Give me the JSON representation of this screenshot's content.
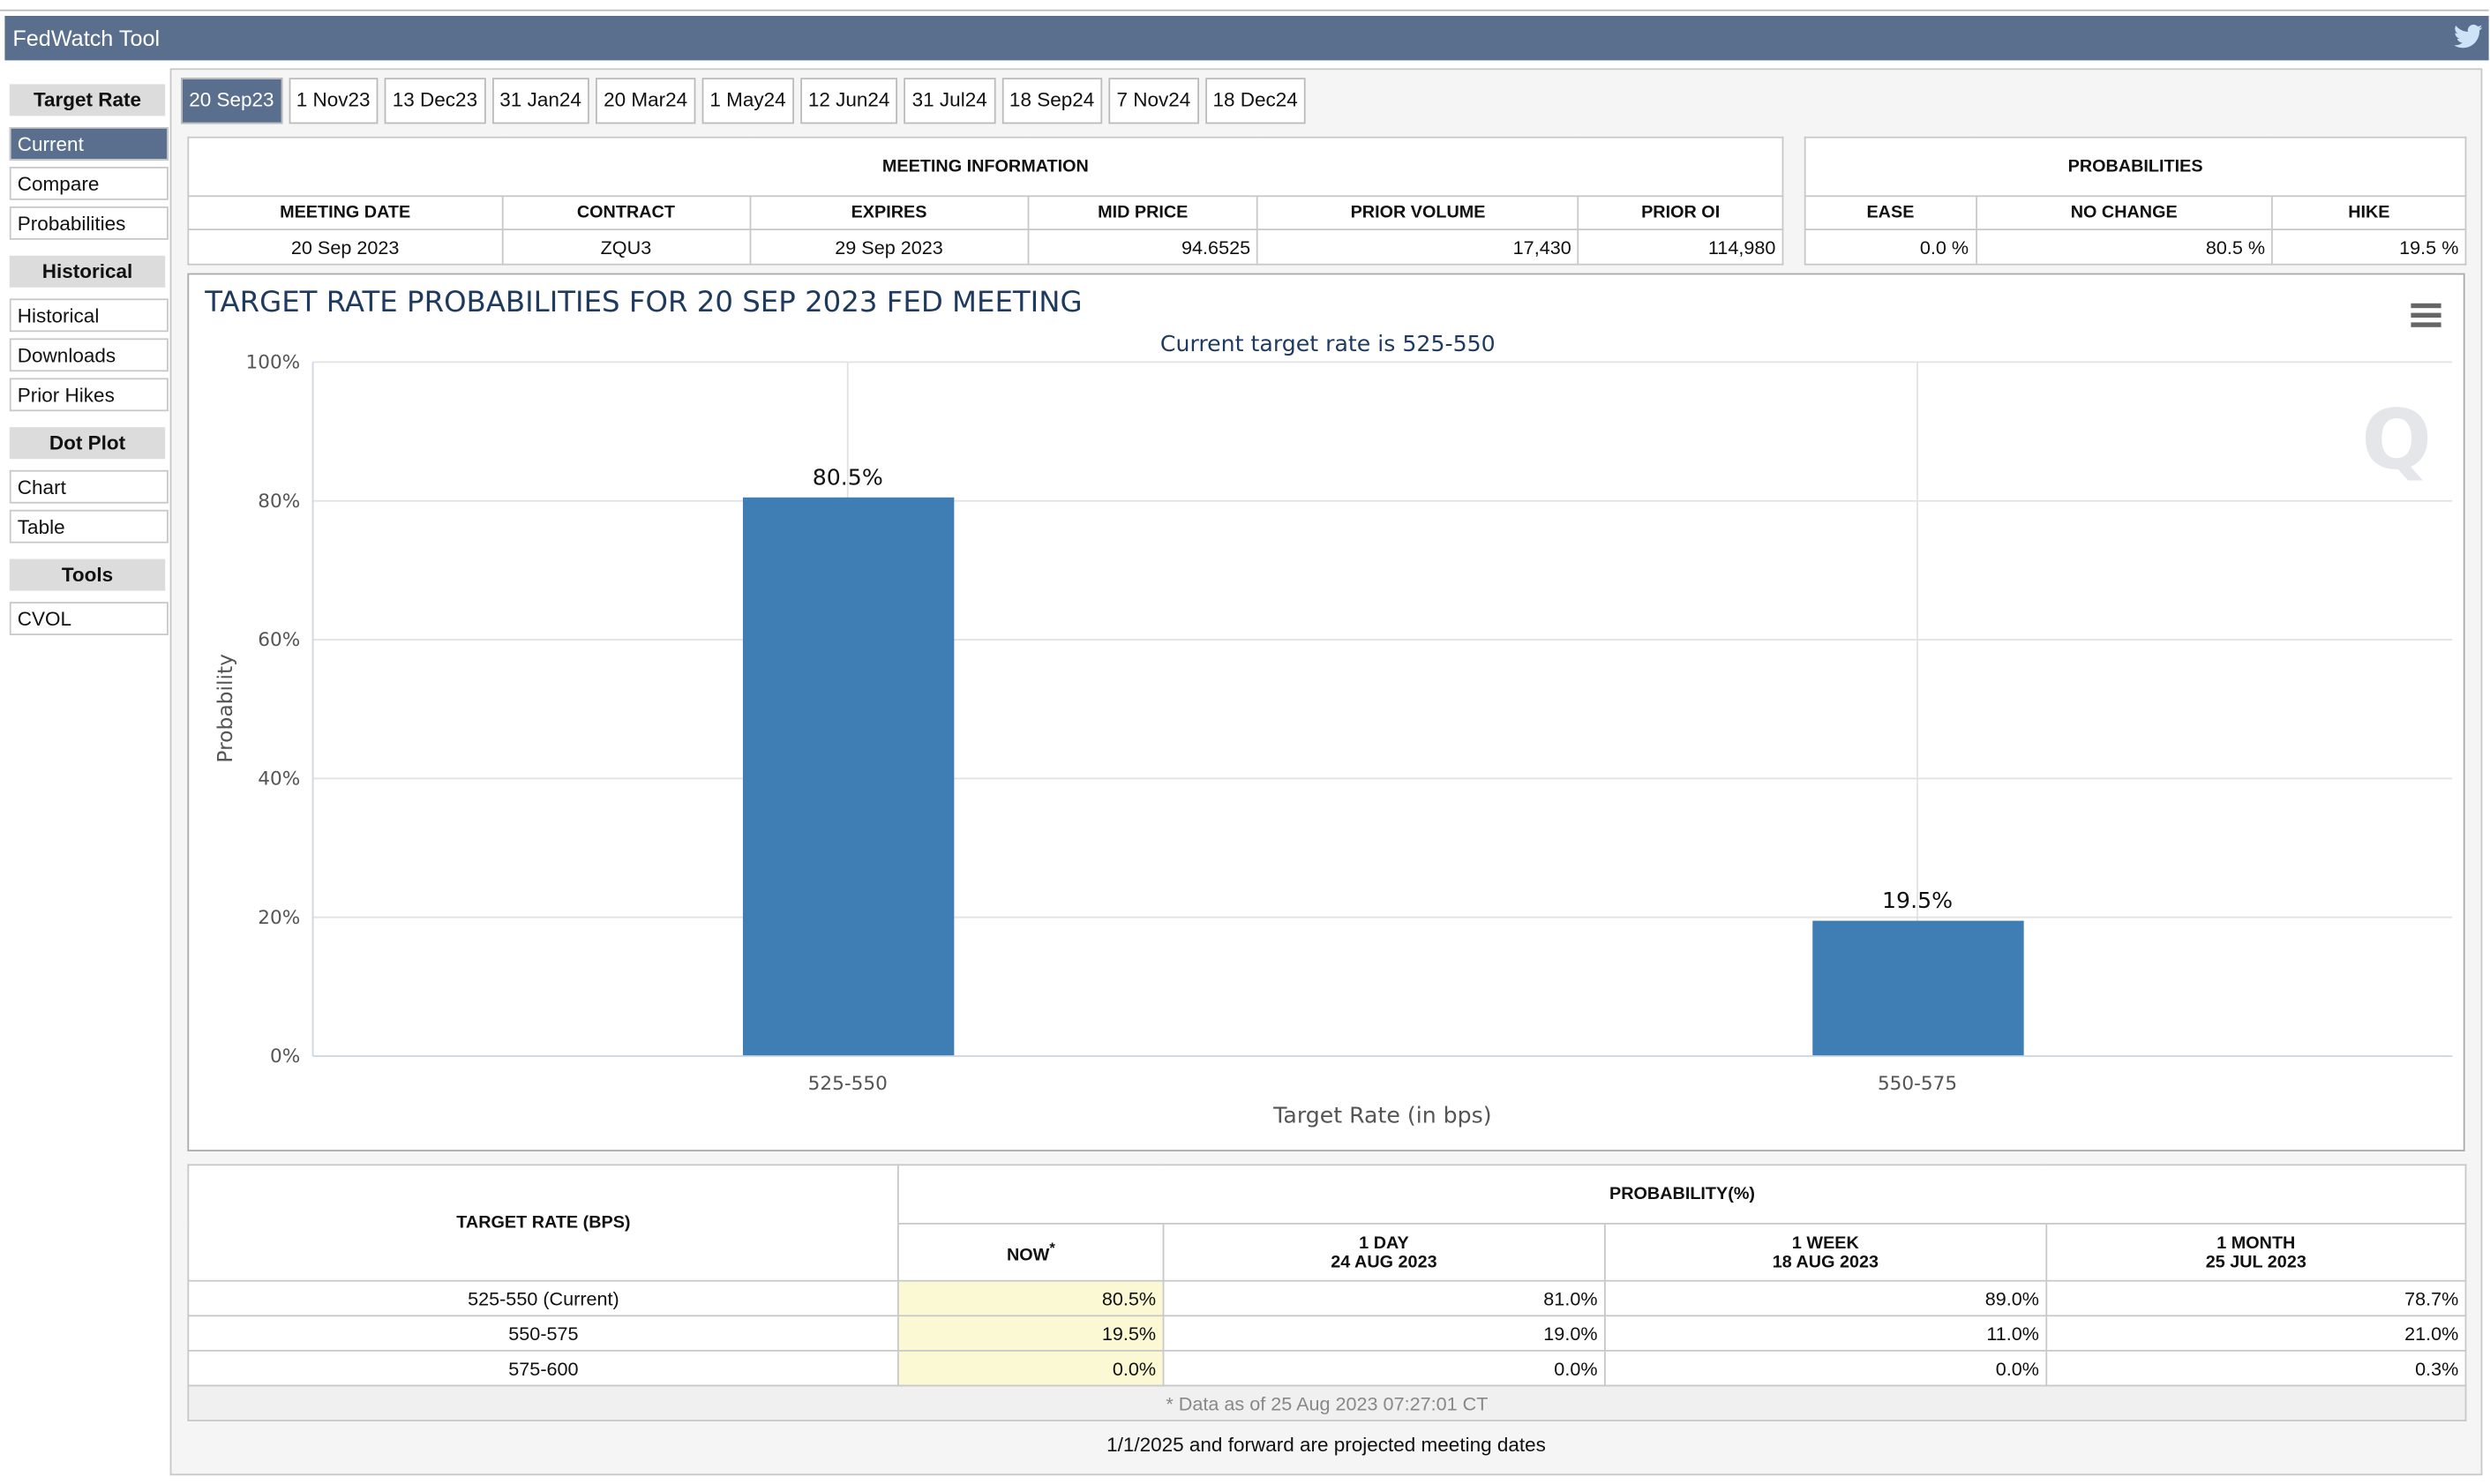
{
  "header": {
    "title": "FedWatch Tool"
  },
  "tabs": [
    "20 Sep23",
    "1 Nov23",
    "13 Dec23",
    "31 Jan24",
    "20 Mar24",
    "1 May24",
    "12 Jun24",
    "31 Jul24",
    "18 Sep24",
    "7 Nov24",
    "18 Dec24"
  ],
  "sidebar": [
    {
      "heading": "Target Rate",
      "items": [
        "Current",
        "Compare",
        "Probabilities"
      ]
    },
    {
      "heading": "Historical",
      "items": [
        "Historical",
        "Downloads",
        "Prior Hikes"
      ]
    },
    {
      "heading": "Dot Plot",
      "items": [
        "Chart",
        "Table"
      ]
    },
    {
      "heading": "Tools",
      "items": [
        "CVOL"
      ]
    }
  ],
  "meeting_info": {
    "title": "MEETING INFORMATION",
    "columns": [
      "MEETING DATE",
      "CONTRACT",
      "EXPIRES",
      "MID PRICE",
      "PRIOR VOLUME",
      "PRIOR OI"
    ],
    "row": [
      "20 Sep 2023",
      "ZQU3",
      "29 Sep 2023",
      "94.6525",
      "17,430",
      "114,980"
    ]
  },
  "probabilities": {
    "title": "PROBABILITIES",
    "columns": [
      "EASE",
      "NO CHANGE",
      "HIKE"
    ],
    "row": [
      "0.0 %",
      "80.5 %",
      "19.5 %"
    ]
  },
  "chart_data": {
    "type": "bar",
    "title": "TARGET RATE PROBABILITIES FOR 20 SEP 2023 FED MEETING",
    "subtitle": "Current target rate is 525-550",
    "x_label": "Target Rate (in bps)",
    "y_label": "Probability",
    "categories": [
      "525-550",
      "550-575"
    ],
    "values": [
      80.5,
      19.5
    ],
    "value_labels": [
      "80.5%",
      "19.5%"
    ],
    "color": "#3f7db5",
    "ylim": [
      0,
      100
    ],
    "yticks": [
      {
        "value": 0,
        "label": "0%"
      },
      {
        "value": 20,
        "label": "20%"
      },
      {
        "value": 40,
        "label": "40%"
      },
      {
        "value": 60,
        "label": "60%"
      },
      {
        "value": 80,
        "label": "80%"
      },
      {
        "value": 100,
        "label": "100%"
      }
    ],
    "grid": true
  },
  "history_table": {
    "row_header": "TARGET RATE (BPS)",
    "group_header": "PROBABILITY(%)",
    "columns": [
      {
        "title": "NOW",
        "note": "*"
      },
      {
        "title": "1 DAY",
        "date": "24 AUG 2023"
      },
      {
        "title": "1 WEEK",
        "date": "18 AUG 2023"
      },
      {
        "title": "1 MONTH",
        "date": "25 JUL 2023"
      }
    ],
    "rows": [
      [
        "525-550 (Current)",
        "80.5%",
        "81.0%",
        "89.0%",
        "78.7%"
      ],
      [
        "550-575",
        "19.5%",
        "19.0%",
        "11.0%",
        "21.0%"
      ],
      [
        "575-600",
        "0.0%",
        "0.0%",
        "0.0%",
        "0.3%"
      ]
    ],
    "note": "* Data as of 25 Aug 2023 07:27:01 CT"
  },
  "footnote": "1/1/2025 and forward are projected meeting dates"
}
